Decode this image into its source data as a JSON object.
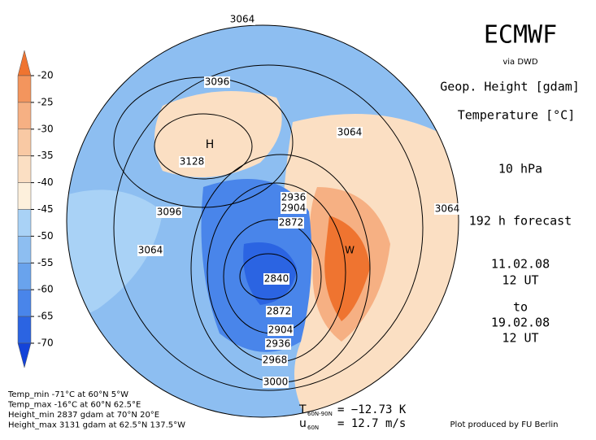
{
  "header": {
    "title": "ECMWF",
    "source": "via DWD",
    "fields": [
      "Geop. Height [gdam]",
      "Temperature [°C]"
    ],
    "level": "10 hPa",
    "forecast": "192 h forecast",
    "valid_from": {
      "date": "11.02.08",
      "time": "12 UT"
    },
    "joiner": "to",
    "valid_to": {
      "date": "19.02.08",
      "time": "12 UT"
    }
  },
  "colorbar": {
    "labels": [
      -20,
      -25,
      -30,
      -35,
      -40,
      -45,
      -50,
      -55,
      -60,
      -65,
      -70
    ],
    "colors": [
      "#ef7430",
      "#f3955d",
      "#f6b083",
      "#f9c9a4",
      "#fbdfc3",
      "#fdf0dc",
      "#a9d2f6",
      "#8dbef1",
      "#69a3ed",
      "#4985ea",
      "#2b64e2",
      "#1343d9"
    ]
  },
  "map": {
    "contour_labels": [
      3064,
      3096,
      3128,
      3064,
      3096,
      3064,
      2936,
      2904,
      2872,
      2840,
      2872,
      2904,
      2936,
      2968,
      3000,
      3064
    ],
    "high": "H",
    "warm": "W"
  },
  "stats": [
    "Temp_min -71°C at 60°N 5°W",
    "Temp_max -16°C at 60°N 62.5°E",
    "Height_min 2837 gdam at 70°N 20°E",
    "Height_max 3131 gdam at 62.5°N 137.5°W"
  ],
  "indices": [
    {
      "symbol": "T",
      "sub": "60N-90N",
      "value": "= −12.73 K"
    },
    {
      "symbol": "u",
      "sub": "60N",
      "value": "= 12.7 m/s"
    }
  ],
  "credit": "Plot produced by FU Berlin"
}
